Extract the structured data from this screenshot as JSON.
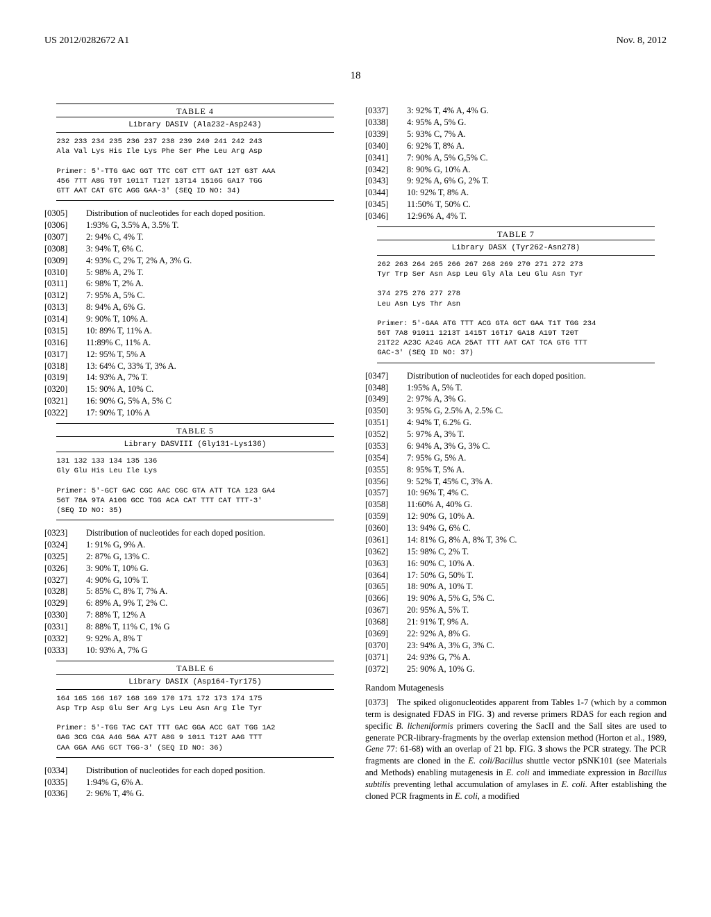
{
  "header": {
    "left": "US 2012/0282672 A1",
    "right": "Nov. 8, 2012"
  },
  "page_number": "18",
  "font": {
    "serif": "Times New Roman",
    "mono": "Courier New",
    "body_size_pt": 12.5
  },
  "colors": {
    "text": "#000000",
    "bg": "#ffffff",
    "rule": "#000000"
  },
  "tables": {
    "t4": {
      "label": "TABLE 4",
      "title": "Library DASIV (Ala232-Asp243)",
      "body": "232 233 234 235 236 237 238 239 240 241 242 243\nAla Val Lys His Ile Lys Phe Ser Phe Leu Arg Asp\n\nPrimer: 5'-TTG GAC GGT TTC CGT CTT GAT 12T G3T AAA\n456 7TT A8G T9T 1011T T12T 13T14 1516G GA17 TGG\nGTT AAT CAT GTC AGG GAA-3' (SEQ ID NO: 34)"
    },
    "t5": {
      "label": "TABLE 5",
      "title": "Library DASVIII (Gly131-Lys136)",
      "body": "131 132 133 134 135 136\nGly Glu His Leu Ile Lys\n\nPrimer: 5'-GCT GAC CGC AAC CGC GTA ATT TCA 123 GA4\n56T 78A 9TA A10G GCC TGG ACA CAT TTT CAT TTT-3'\n(SEQ ID NO: 35)"
    },
    "t6": {
      "label": "TABLE 6",
      "title": "Library DASIX (Asp164-Tyr175)",
      "body": "164 165 166 167 168 169 170 171 172 173 174 175\nAsp Trp Asp Glu Ser Arg Lys Leu Asn Arg Ile Tyr\n\nPrimer: 5'-TGG TAC CAT TTT GAC GGA ACC GAT TGG 1A2\nGAG 3CG CGA A4G 56A A7T A8G 9 1011 T12T AAG TTT\nCAA GGA AAG GCT TGG-3' (SEQ ID NO: 36)"
    },
    "t7": {
      "label": "TABLE 7",
      "title": "Library DASX (Tyr262-Asn278)",
      "body": "262 263 264 265 266 267 268 269 270 271 272 273\nTyr Trp Ser Asn Asp Leu Gly Ala Leu Glu Asn Tyr\n\n374 275 276 277 278\nLeu Asn Lys Thr Asn\n\nPrimer: 5'-GAA ATG TTT ACG GTA GCT GAA T1T TGG 234\n56T 7A8 91011 1213T 1415T 16T17 GA18 A19T T20T\n21T22 A23C A24G ACA 25AT TTT AAT CAT TCA GTG TTT\nGAC-3' (SEQ ID NO: 37)"
    }
  },
  "lists": {
    "lead_text": "Distribution of nucleotides for each doped position.",
    "l4": [
      [
        "[0305]",
        "Distribution of nucleotides for each doped position."
      ],
      [
        "[0306]",
        "1:93% G, 3.5% A, 3.5% T."
      ],
      [
        "[0307]",
        "2: 94% C, 4% T."
      ],
      [
        "[0308]",
        "3: 94% T, 6% C."
      ],
      [
        "[0309]",
        "4: 93% C, 2% T, 2% A, 3% G."
      ],
      [
        "[0310]",
        "5: 98% A, 2% T."
      ],
      [
        "[0311]",
        "6: 98% T, 2% A."
      ],
      [
        "[0312]",
        "7: 95% A, 5% C."
      ],
      [
        "[0313]",
        "8: 94% A, 6% G."
      ],
      [
        "[0314]",
        "9: 90% T, 10% A."
      ],
      [
        "[0315]",
        "10: 89% T, 11% A."
      ],
      [
        "[0316]",
        "11:89% C, 11% A."
      ],
      [
        "[0317]",
        "12: 95% T, 5% A"
      ],
      [
        "[0318]",
        "13: 64% C, 33% T, 3% A."
      ],
      [
        "[0319]",
        "14: 93% A, 7% T."
      ],
      [
        "[0320]",
        "15: 90% A, 10% C."
      ],
      [
        "[0321]",
        "16: 90% G, 5% A, 5% C"
      ],
      [
        "[0322]",
        "17: 90% T, 10% A"
      ]
    ],
    "l5": [
      [
        "[0323]",
        "Distribution of nucleotides for each doped position."
      ],
      [
        "[0324]",
        "1: 91% G, 9% A."
      ],
      [
        "[0325]",
        "2: 87% G, 13% C."
      ],
      [
        "[0326]",
        "3: 90% T, 10% G."
      ],
      [
        "[0327]",
        "4: 90% G, 10% T."
      ],
      [
        "[0328]",
        "5: 85% C, 8% T, 7% A."
      ],
      [
        "[0329]",
        "6: 89% A, 9% T, 2% C."
      ],
      [
        "[0330]",
        "7: 88% T, 12% A"
      ],
      [
        "[0331]",
        "8: 88% T, 11% C, 1% G"
      ],
      [
        "[0332]",
        "9: 92% A, 8% T"
      ],
      [
        "[0333]",
        "10: 93% A, 7% G"
      ]
    ],
    "l6": [
      [
        "[0334]",
        "Distribution of nucleotides for each doped position."
      ],
      [
        "[0335]",
        "1:94% G, 6% A."
      ],
      [
        "[0336]",
        "2: 96% T, 4% G."
      ]
    ],
    "l6b": [
      [
        "[0337]",
        "3: 92% T, 4% A, 4% G."
      ],
      [
        "[0338]",
        "4: 95% A, 5% G."
      ],
      [
        "[0339]",
        "5: 93% C, 7% A."
      ],
      [
        "[0340]",
        "6: 92% T, 8% A."
      ],
      [
        "[0341]",
        "7: 90% A, 5% G,5% C."
      ],
      [
        "[0342]",
        "8: 90% G, 10% A."
      ],
      [
        "[0343]",
        "9: 92% A, 6% G, 2% T."
      ],
      [
        "[0344]",
        "10: 92% T, 8% A."
      ],
      [
        "[0345]",
        "11:50% T, 50% C."
      ],
      [
        "[0346]",
        "12:96% A, 4% T."
      ]
    ],
    "l7": [
      [
        "[0347]",
        "Distribution of nucleotides for each doped position."
      ],
      [
        "[0348]",
        "1:95% A, 5% T."
      ],
      [
        "[0349]",
        "2: 97% A, 3% G."
      ],
      [
        "[0350]",
        "3: 95% G, 2.5% A, 2.5% C."
      ],
      [
        "[0351]",
        "4: 94% T, 6.2% G."
      ],
      [
        "[0352]",
        "5: 97% A, 3% T."
      ],
      [
        "[0353]",
        "6: 94% A, 3% G, 3% C."
      ],
      [
        "[0354]",
        "7: 95% G, 5% A."
      ],
      [
        "[0355]",
        "8: 95% T, 5% A."
      ],
      [
        "[0356]",
        "9: 52% T, 45% C, 3% A."
      ],
      [
        "[0357]",
        "10: 96% T, 4% C."
      ],
      [
        "[0358]",
        "11:60% A, 40% G."
      ],
      [
        "[0359]",
        "12: 90% G, 10% A."
      ],
      [
        "[0360]",
        "13: 94% G, 6% C."
      ],
      [
        "[0361]",
        "14: 81% G, 8% A, 8% T, 3% C."
      ],
      [
        "[0362]",
        "15: 98% C, 2% T."
      ],
      [
        "[0363]",
        "16: 90% C, 10% A."
      ],
      [
        "[0364]",
        "17: 50% G, 50% T."
      ],
      [
        "[0365]",
        "18: 90% A, 10% T."
      ],
      [
        "[0366]",
        "19: 90% A, 5% G, 5% C."
      ],
      [
        "[0367]",
        "20: 95% A, 5% T."
      ],
      [
        "[0368]",
        "21: 91% T, 9% A."
      ],
      [
        "[0369]",
        "22: 92% A, 8% G."
      ],
      [
        "[0370]",
        "23: 94% A, 3% G, 3% C."
      ],
      [
        "[0371]",
        "24: 93% G, 7% A."
      ],
      [
        "[0372]",
        "25: 90% A, 10% G."
      ]
    ]
  },
  "random_mutagenesis": {
    "heading": "Random Mutagenesis",
    "para_idx": "[0373]",
    "text_parts": [
      "The spiked oligonucleotides apparent from Tables 1-7 (which by a common term is designated FDAS in FIG. ",
      "3",
      ") and reverse primers RDAS for each region and specific ",
      "B. licheniformis",
      " primers covering the SacII and the SalI sites are used to generate PCR-library-fragments by the overlap extension method (Horton et al., 1989, ",
      "Gene",
      " 77: 61-68) with an overlap of 21 bp. FIG. ",
      "3",
      " shows the PCR strategy. The PCR fragments are cloned in the ",
      "E. coli/Bacillus",
      " shuttle vector pSNK101 (see Materials and Methods) enabling mutagenesis in ",
      "E. coli",
      " and immediate expression in ",
      "Bacillus subtilis",
      " preventing lethal accumulation of amylases in ",
      "E. coli",
      ". After establishing the cloned PCR fragments in ",
      "E. coli",
      ", a modified"
    ],
    "italic_indices": [
      3,
      5,
      9,
      11,
      13,
      15,
      17
    ]
  }
}
